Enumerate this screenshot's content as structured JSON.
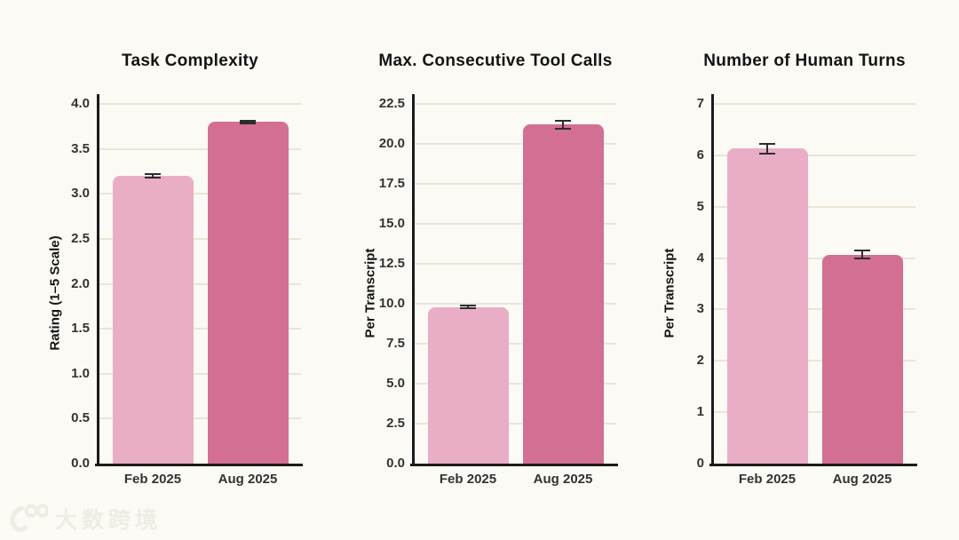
{
  "palette": {
    "background": "#fbfaf5",
    "gridline": "#ece4d6",
    "axis": "#1b1b1b",
    "error_bar": "#2d2d2d",
    "feb_bar": "#e9aec6",
    "aug_bar": "#d26f93",
    "text": "#141414"
  },
  "watermark": {
    "logo": "100-logo",
    "text": "大数跨境"
  },
  "chart_data": [
    {
      "type": "bar",
      "title": "Task Complexity",
      "ylabel": "Rating (1–5 Scale)",
      "xlabel": "",
      "categories": [
        "Feb 2025",
        "Aug 2025"
      ],
      "values": [
        3.2,
        3.8
      ],
      "errors": [
        0.02,
        0.015
      ],
      "bar_colors": [
        "#e9aec6",
        "#d26f93"
      ],
      "ylim": [
        0,
        4.0
      ],
      "ytick_step": 0.5,
      "ytick_decimals": 1,
      "grid": true,
      "legend": "none"
    },
    {
      "type": "bar",
      "title": "Max. Consecutive Tool Calls",
      "ylabel": "Per Transcript",
      "xlabel": "",
      "categories": [
        "Feb 2025",
        "Aug 2025"
      ],
      "values": [
        9.8,
        21.2
      ],
      "errors": [
        0.1,
        0.27
      ],
      "bar_colors": [
        "#e9aec6",
        "#d26f93"
      ],
      "ylim": [
        0,
        22.5
      ],
      "ytick_step": 2.5,
      "ytick_decimals": 1,
      "grid": true,
      "legend": "none"
    },
    {
      "type": "bar",
      "title": "Number of Human Turns",
      "ylabel": "Per Transcript",
      "xlabel": "",
      "categories": [
        "Feb 2025",
        "Aug 2025"
      ],
      "values": [
        6.13,
        4.07
      ],
      "errors": [
        0.1,
        0.08
      ],
      "bar_colors": [
        "#e9aec6",
        "#d26f93"
      ],
      "ylim": [
        0,
        7
      ],
      "ytick_step": 1,
      "ytick_decimals": 0,
      "grid": true,
      "legend": "none"
    }
  ]
}
